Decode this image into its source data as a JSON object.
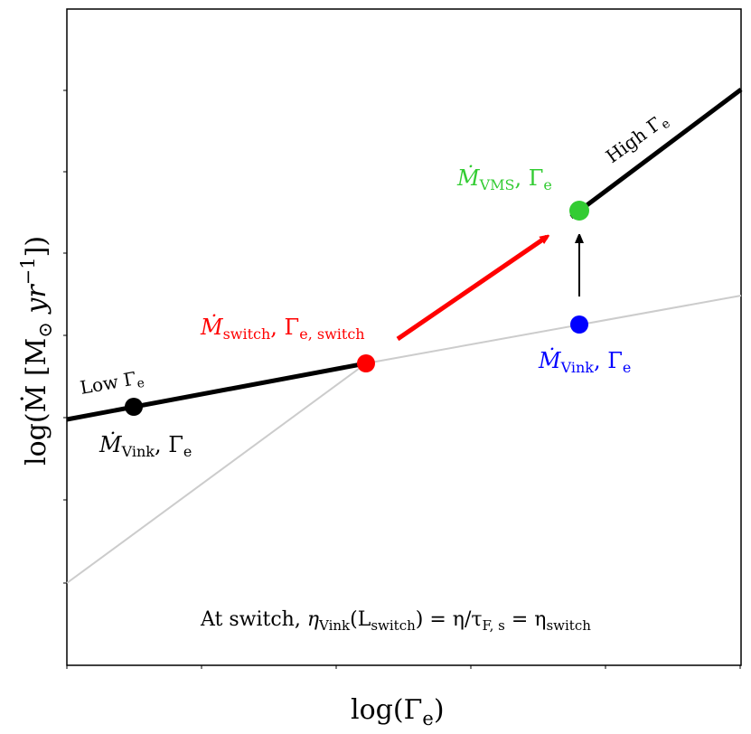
{
  "axes": {
    "xlabel": "log(Γ",
    "xlabel_sub": "e",
    "xlabel_close": ")",
    "ylabel": "log(Ṁ [M",
    "ylabel_sun": "⊙",
    "ylabel_unit": " yr",
    "ylabel_sup": "−1",
    "ylabel_close": "])"
  },
  "labels": {
    "low": {
      "text": "Low Γ",
      "sub": "e"
    },
    "high": {
      "text": "High Γ",
      "sub": "e"
    },
    "vink_low": {
      "mdot": "Ṁ",
      "sub": "Vink",
      "gamma": ", Γ",
      "gsub": "e"
    },
    "switch": {
      "mdot": "Ṁ",
      "sub": "switch",
      "gamma": ", Γ",
      "gsub": "e, switch"
    },
    "vms": {
      "mdot": "Ṁ",
      "sub": "VMS",
      "gamma": ", Γ",
      "gsub": "e"
    },
    "vink_high": {
      "mdot": "Ṁ",
      "sub": "Vink",
      "gamma": ", Γ",
      "gsub": "e"
    },
    "equation": {
      "prefix": "At switch, ",
      "eta1": "η",
      "eta1_sub": "Vink",
      "paren_open": "(L",
      "L_sub": "switch",
      "mid": ") = η/τ",
      "tau_sub": "F, s",
      "eq2": " = η",
      "eta3_sub": "switch"
    }
  },
  "colors": {
    "main_line": "#000000",
    "faint_line": "#cccccc",
    "arrow": "#ff0000",
    "switch_point": "#ff0000",
    "vms_point": "#33cc33",
    "vink_high_point": "#0000ff",
    "vink_low_point": "#000000"
  }
}
